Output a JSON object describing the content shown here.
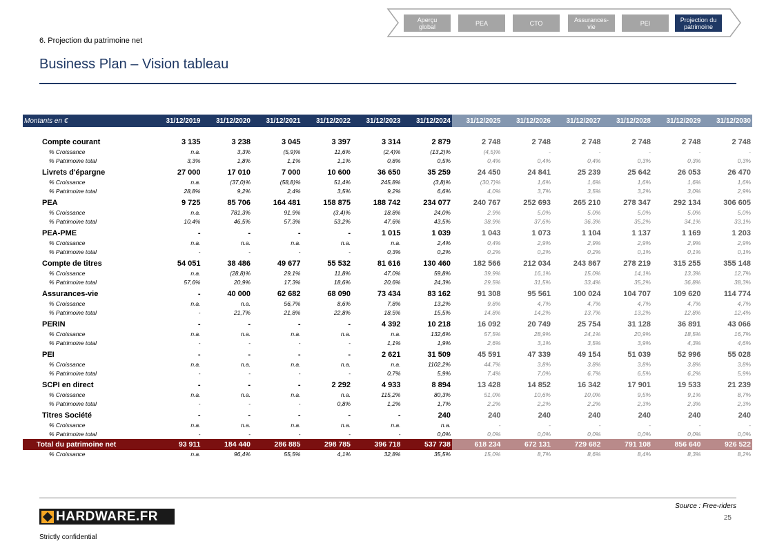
{
  "header": {
    "section": "6. Projection du patrimoine net",
    "title": "Business Plan – Vision tableau"
  },
  "nav": [
    {
      "label": "Aperçu\nglobal",
      "active": false
    },
    {
      "label": "PEA",
      "active": false
    },
    {
      "label": "CTO",
      "active": false
    },
    {
      "label": "Assurances-\nvie",
      "active": false
    },
    {
      "label": "PEI",
      "active": false
    },
    {
      "label": "Projection du\npatrimoine",
      "active": true
    }
  ],
  "table": {
    "corner": "Montants en €",
    "columns": [
      "31/12/2019",
      "31/12/2020",
      "31/12/2021",
      "31/12/2022",
      "31/12/2023",
      "31/12/2024",
      "31/12/2025",
      "31/12/2026",
      "31/12/2027",
      "31/12/2028",
      "31/12/2029",
      "31/12/2030"
    ],
    "historical_count": 6,
    "groups": [
      {
        "label": "Compte courant",
        "values": [
          "3 135",
          "3 238",
          "3 045",
          "3 397",
          "3 314",
          "2 879",
          "2 748",
          "2 748",
          "2 748",
          "2 748",
          "2 748",
          "2 748"
        ],
        "croissance": [
          "n.a.",
          "3,3%",
          "(5,9)%",
          "11,6%",
          "(2,4)%",
          "(13,2)%",
          "(4,5)%",
          "-",
          "-",
          "-",
          "-",
          "-"
        ],
        "patrimoine": [
          "3,3%",
          "1,8%",
          "1,1%",
          "1,1%",
          "0,8%",
          "0,5%",
          "0,4%",
          "0,4%",
          "0,4%",
          "0,3%",
          "0,3%",
          "0,3%"
        ]
      },
      {
        "label": "Livrets d'épargne",
        "values": [
          "27 000",
          "17 010",
          "7 000",
          "10 600",
          "36 650",
          "35 259",
          "24 450",
          "24 841",
          "25 239",
          "25 642",
          "26 053",
          "26 470"
        ],
        "croissance": [
          "n.a.",
          "(37,0)%",
          "(58,8)%",
          "51,4%",
          "245,8%",
          "(3,8)%",
          "(30,7)%",
          "1,6%",
          "1,6%",
          "1,6%",
          "1,6%",
          "1,6%"
        ],
        "patrimoine": [
          "28,8%",
          "9,2%",
          "2,4%",
          "3,5%",
          "9,2%",
          "6,6%",
          "4,0%",
          "3,7%",
          "3,5%",
          "3,2%",
          "3,0%",
          "2,9%"
        ]
      },
      {
        "label": "PEA",
        "values": [
          "9 725",
          "85 706",
          "164 481",
          "158 875",
          "188 742",
          "234 077",
          "240 767",
          "252 693",
          "265 210",
          "278 347",
          "292 134",
          "306 605"
        ],
        "croissance": [
          "n.a.",
          "781,3%",
          "91,9%",
          "(3,4)%",
          "18,8%",
          "24,0%",
          "2,9%",
          "5,0%",
          "5,0%",
          "5,0%",
          "5,0%",
          "5,0%"
        ],
        "patrimoine": [
          "10,4%",
          "46,5%",
          "57,3%",
          "53,2%",
          "47,6%",
          "43,5%",
          "38,9%",
          "37,6%",
          "36,3%",
          "35,2%",
          "34,1%",
          "33,1%"
        ]
      },
      {
        "label": "PEA-PME",
        "values": [
          "-",
          "-",
          "-",
          "-",
          "1 015",
          "1 039",
          "1 043",
          "1 073",
          "1 104",
          "1 137",
          "1 169",
          "1 203"
        ],
        "croissance": [
          "n.a.",
          "n.a.",
          "n.a.",
          "n.a.",
          "n.a.",
          "2,4%",
          "0,4%",
          "2,9%",
          "2,9%",
          "2,9%",
          "2,9%",
          "2,9%"
        ],
        "patrimoine": [
          "-",
          "-",
          "-",
          "-",
          "0,3%",
          "0,2%",
          "0,2%",
          "0,2%",
          "0,2%",
          "0,1%",
          "0,1%",
          "0,1%"
        ]
      },
      {
        "label": "Compte de titres",
        "values": [
          "54 051",
          "38 486",
          "49 677",
          "55 532",
          "81 616",
          "130 460",
          "182 566",
          "212 034",
          "243 867",
          "278 219",
          "315 255",
          "355 148"
        ],
        "croissance": [
          "n.a.",
          "(28,8)%",
          "29,1%",
          "11,8%",
          "47,0%",
          "59,8%",
          "39,9%",
          "16,1%",
          "15,0%",
          "14,1%",
          "13,3%",
          "12,7%"
        ],
        "patrimoine": [
          "57,6%",
          "20,9%",
          "17,3%",
          "18,6%",
          "20,6%",
          "24,3%",
          "29,5%",
          "31,5%",
          "33,4%",
          "35,2%",
          "36,8%",
          "38,3%"
        ]
      },
      {
        "label": "Assurances-vie",
        "values": [
          "-",
          "40 000",
          "62 682",
          "68 090",
          "73 434",
          "83 162",
          "91 308",
          "95 561",
          "100 024",
          "104 707",
          "109 620",
          "114 774"
        ],
        "croissance": [
          "n.a.",
          "n.a.",
          "56,7%",
          "8,6%",
          "7,8%",
          "13,2%",
          "9,8%",
          "4,7%",
          "4,7%",
          "4,7%",
          "4,7%",
          "4,7%"
        ],
        "patrimoine": [
          "-",
          "21,7%",
          "21,8%",
          "22,8%",
          "18,5%",
          "15,5%",
          "14,8%",
          "14,2%",
          "13,7%",
          "13,2%",
          "12,8%",
          "12,4%"
        ]
      },
      {
        "label": "PERIN",
        "values": [
          "-",
          "-",
          "-",
          "-",
          "4 392",
          "10 218",
          "16 092",
          "20 749",
          "25 754",
          "31 128",
          "36 891",
          "43 066"
        ],
        "croissance": [
          "n.a.",
          "n.a.",
          "n.a.",
          "n.a.",
          "n.a.",
          "132,6%",
          "57,5%",
          "28,9%",
          "24,1%",
          "20,9%",
          "18,5%",
          "16,7%"
        ],
        "patrimoine": [
          "-",
          "-",
          "-",
          "-",
          "1,1%",
          "1,9%",
          "2,6%",
          "3,1%",
          "3,5%",
          "3,9%",
          "4,3%",
          "4,6%"
        ]
      },
      {
        "label": "PEI",
        "values": [
          "-",
          "-",
          "-",
          "-",
          "2 621",
          "31 509",
          "45 591",
          "47 339",
          "49 154",
          "51 039",
          "52 996",
          "55 028"
        ],
        "croissance": [
          "n.a.",
          "n.a.",
          "n.a.",
          "n.a.",
          "n.a.",
          "1102,2%",
          "44,7%",
          "3,8%",
          "3,8%",
          "3,8%",
          "3,8%",
          "3,8%"
        ],
        "patrimoine": [
          "-",
          "-",
          "-",
          "-",
          "0,7%",
          "5,9%",
          "7,4%",
          "7,0%",
          "6,7%",
          "6,5%",
          "6,2%",
          "5,9%"
        ]
      },
      {
        "label": "SCPI en direct",
        "values": [
          "-",
          "-",
          "-",
          "2 292",
          "4 933",
          "8 894",
          "13 428",
          "14 852",
          "16 342",
          "17 901",
          "19 533",
          "21 239"
        ],
        "croissance": [
          "n.a.",
          "n.a.",
          "n.a.",
          "n.a.",
          "115,2%",
          "80,3%",
          "51,0%",
          "10,6%",
          "10,0%",
          "9,5%",
          "9,1%",
          "8,7%"
        ],
        "patrimoine": [
          "-",
          "-",
          "-",
          "0,8%",
          "1,2%",
          "1,7%",
          "2,2%",
          "2,2%",
          "2,2%",
          "2,3%",
          "2,3%",
          "2,3%"
        ]
      },
      {
        "label": "Titres Société",
        "values": [
          "-",
          "-",
          "-",
          "-",
          "-",
          "240",
          "240",
          "240",
          "240",
          "240",
          "240",
          "240"
        ],
        "croissance": [
          "n.a.",
          "n.a.",
          "n.a.",
          "n.a.",
          "n.a.",
          "n.a.",
          "-",
          "-",
          "-",
          "-",
          "-",
          "-"
        ],
        "patrimoine": [
          "-",
          "-",
          "-",
          "-",
          "-",
          "0,0%",
          "0,0%",
          "0,0%",
          "0,0%",
          "0,0%",
          "0,0%",
          "0,0%"
        ]
      }
    ],
    "sub_labels": {
      "croissance": "% Croissance",
      "patrimoine": "% Patrimoine total"
    },
    "total": {
      "label": "Total du patrimoine net",
      "values": [
        "93 911",
        "184 440",
        "286 885",
        "298 785",
        "396 718",
        "537 738",
        "618 234",
        "672 131",
        "729 682",
        "791 108",
        "856 640",
        "926 522"
      ],
      "croissance": [
        "n.a.",
        "96,4%",
        "55,5%",
        "4,1%",
        "32,8%",
        "35,5%",
        "15,0%",
        "8,7%",
        "8,6%",
        "8,4%",
        "8,3%",
        "8,2%"
      ]
    }
  },
  "footer": {
    "source": "Source : Free-riders",
    "page": "25",
    "logo": "HARDWARE.FR",
    "confidential": "Strictly confidential"
  },
  "colors": {
    "navy": "#1f3864",
    "projection_header": "#8497b0",
    "total": "#7b1010",
    "total_projection": "#b98a8a"
  }
}
